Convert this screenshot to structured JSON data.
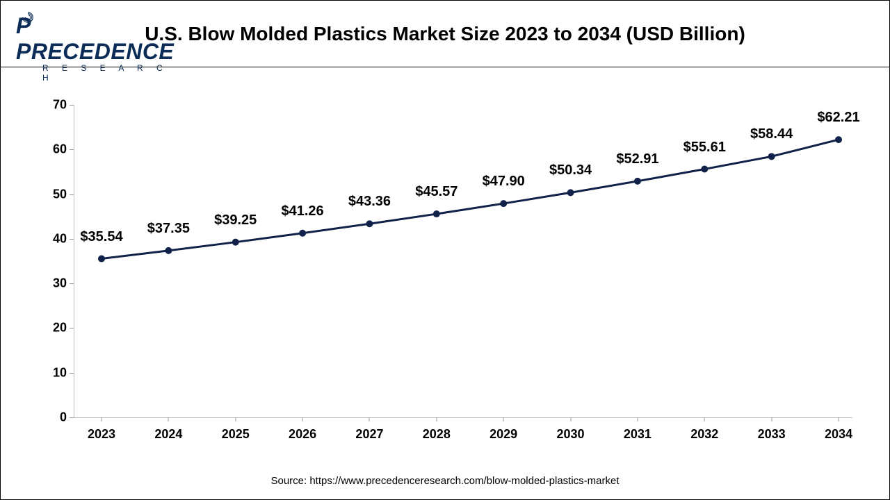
{
  "logo": {
    "brand": "PRECEDENCE",
    "sub": "R E S E A R C H",
    "color": "#0b2c56"
  },
  "title": "U.S. Blow Molded Plastics Market Size 2023 to 2034 (USD Billion)",
  "source": "Source: https://www.precedenceresearch.com/blow-molded-plastics-market",
  "chart": {
    "type": "line",
    "categories": [
      "2023",
      "2024",
      "2025",
      "2026",
      "2027",
      "2028",
      "2029",
      "2030",
      "2031",
      "2032",
      "2033",
      "2034"
    ],
    "values": [
      35.54,
      37.35,
      39.25,
      41.26,
      43.36,
      45.57,
      47.9,
      50.34,
      52.91,
      55.61,
      58.44,
      62.21
    ],
    "value_labels": [
      "$35.54",
      "$37.35",
      "$39.25",
      "$41.26",
      "$43.36",
      "$45.57",
      "$47.90",
      "$50.34",
      "$52.91",
      "$55.61",
      "$58.44",
      "$62.21"
    ],
    "ylim": [
      0,
      70
    ],
    "ytick_step": 10,
    "yticks": [
      0,
      10,
      20,
      30,
      40,
      50,
      60,
      70
    ],
    "line_color": "#10224a",
    "line_width": 3,
    "marker_color": "#10224a",
    "marker_size": 5,
    "background_color": "#ffffff",
    "axis_color": "#bfbfbf",
    "tick_font_size": 18,
    "tick_font_weight": 700,
    "label_font_size": 20,
    "label_font_weight": 700,
    "title_font_size": 28,
    "title_font_weight": 700,
    "label_offset_y": 20
  }
}
